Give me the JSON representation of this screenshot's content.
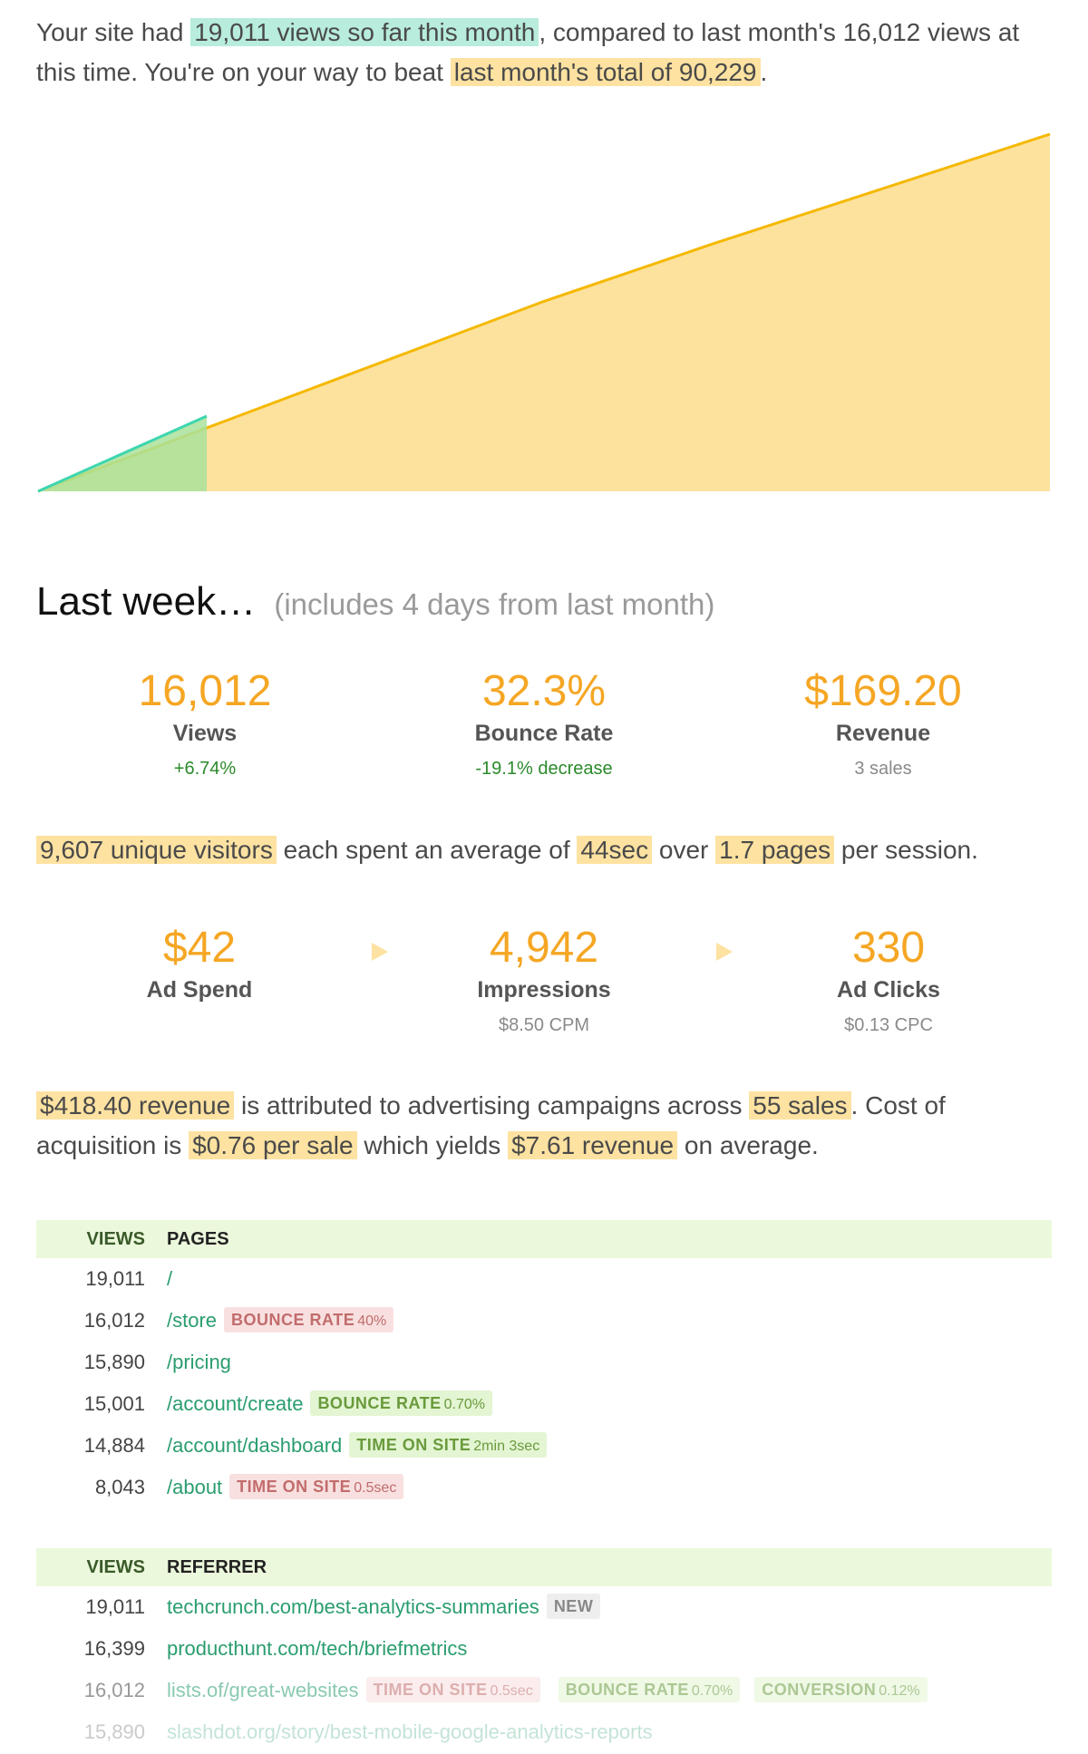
{
  "intro": {
    "p1": "Your site had ",
    "views_hl": "19,011 views so far this month",
    "p2": ", compared to last month's 16,012 views at this time. You're on your way to beat ",
    "total_hl": "last month's total of 90,229",
    "p3": "."
  },
  "colors": {
    "accent": "#f5a623",
    "highlight_yellow": "#fde2a1",
    "highlight_green": "#b8ecdc",
    "link": "#2a9d6e",
    "area_last_month": "#fde29e",
    "area_this_month": "#a9e29a",
    "line_last_month": "#f5b800",
    "line_this_month": "#3ed6b0"
  },
  "chart_data": {
    "type": "area",
    "title": "",
    "xlabel": "",
    "ylabel": "",
    "grid": false,
    "legend": "none",
    "ylim": [
      0,
      90229
    ],
    "series": [
      {
        "x": [
          0,
          5,
          15,
          20,
          30
        ],
        "values": [
          0,
          16012,
          48000,
          62500,
          90229
        ]
      },
      {
        "x": [
          0,
          5
        ],
        "values": [
          0,
          19011
        ]
      }
    ]
  },
  "last_week": {
    "title": "Last week…",
    "subtitle": "(includes 4 days from last month)",
    "stats": [
      {
        "value": "16,012",
        "label": "Views",
        "note": "+6.74%",
        "note_kind": "up"
      },
      {
        "value": "32.3%",
        "label": "Bounce Rate",
        "note": "-19.1% decrease",
        "note_kind": "up"
      },
      {
        "value": "$169.20",
        "label": "Revenue",
        "note": "3 sales",
        "note_kind": "neutral"
      }
    ]
  },
  "visitors": {
    "unique": "9,607 unique visitors",
    "t1": " each spent an average of ",
    "avg_time": "44sec",
    "t2": " over ",
    "pages": "1.7 pages",
    "t3": " per session."
  },
  "ads": {
    "stats": [
      {
        "value": "$42",
        "label": "Ad Spend",
        "note": ""
      },
      {
        "value": "4,942",
        "label": "Impressions",
        "note": "$8.50 CPM"
      },
      {
        "value": "330",
        "label": "Ad Clicks",
        "note": "$0.13 CPC"
      }
    ],
    "arrow_icon": "triangle-right-icon"
  },
  "revenue": {
    "rev": "$418.40 revenue",
    "t1": " is attributed to advertising campaigns across ",
    "sales": "55 sales",
    "t2": ". Cost of acquisition is ",
    "cost": "$0.76 per sale",
    "t3": " which yields ",
    "yield": "$7.61 revenue",
    "t4": " on average."
  },
  "pages_table": {
    "col_views": "VIEWS",
    "col_name": "PAGES",
    "rows": [
      {
        "views": "19,011",
        "path": "/"
      },
      {
        "views": "16,012",
        "path": "/store",
        "badge": {
          "kind": "red",
          "label": "BOUNCE RATE",
          "value": "40%"
        }
      },
      {
        "views": "15,890",
        "path": "/pricing"
      },
      {
        "views": "15,001",
        "path": "/account/create",
        "badge": {
          "kind": "green",
          "label": "BOUNCE RATE",
          "value": "0.70%"
        }
      },
      {
        "views": "14,884",
        "path": "/account/dashboard",
        "badge": {
          "kind": "green",
          "label": "TIME ON SITE",
          "value": "2min 3sec"
        }
      },
      {
        "views": "8,043",
        "path": "/about",
        "badge": {
          "kind": "red",
          "label": "TIME ON SITE",
          "value": "0.5sec"
        }
      }
    ]
  },
  "referrer_table": {
    "col_views": "VIEWS",
    "col_name": "REFERRER",
    "rows": [
      {
        "views": "19,011",
        "path": "techcrunch.com/best-analytics-summaries",
        "badge_new": "NEW"
      },
      {
        "views": "16,399",
        "path": "producthunt.com/tech/briefmetrics"
      },
      {
        "views": "16,012",
        "path": "lists.of/great-websites",
        "b1": {
          "label": "TIME ON SITE",
          "value": "0.5sec"
        },
        "b2": {
          "label": "BOUNCE RATE",
          "value": "0.70%"
        },
        "b3": {
          "label": "CONVERSION",
          "value": "0.12%"
        }
      },
      {
        "views": "15,890",
        "path": "slashdot.org/story/best-mobile-google-analytics-reports"
      }
    ]
  }
}
